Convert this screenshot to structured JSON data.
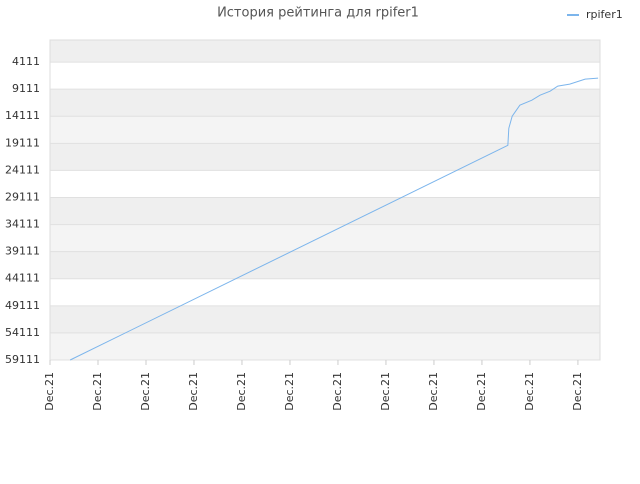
{
  "chart_data": {
    "type": "line",
    "title": "История рейтинга для rpifer1",
    "x": [
      0.42,
      9.54,
      9.56,
      9.63,
      9.79,
      10.04,
      10.21,
      10.42,
      10.58,
      10.83,
      11.15,
      11.42
    ],
    "series": [
      {
        "name": "rpifer1",
        "color": "#7cb5ec",
        "values": [
          59111,
          19481,
          16333,
          14111,
          12074,
          11148,
          10222,
          9481,
          8555,
          8185,
          7259,
          7074
        ]
      }
    ],
    "xlim": [
      0,
      11.46
    ],
    "xticks": [
      {
        "value": 0,
        "label": "Dec.21"
      },
      {
        "value": 1,
        "label": "Dec.21"
      },
      {
        "value": 2,
        "label": "Dec.21"
      },
      {
        "value": 3,
        "label": "Dec.21"
      },
      {
        "value": 4,
        "label": "Dec.21"
      },
      {
        "value": 5,
        "label": "Dec.21"
      },
      {
        "value": 6,
        "label": "Dec.21"
      },
      {
        "value": 7,
        "label": "Dec.21"
      },
      {
        "value": 8,
        "label": "Dec.21"
      },
      {
        "value": 9,
        "label": "Dec.21"
      },
      {
        "value": 10,
        "label": "Dec.21"
      },
      {
        "value": 11,
        "label": "Dec.21"
      }
    ],
    "ylim": [
      59111,
      37
    ],
    "yticks": [
      4111,
      9111,
      14111,
      19111,
      24111,
      29111,
      34111,
      39111,
      44111,
      49111,
      54111,
      59111
    ],
    "grid": true,
    "legend": "top-right"
  }
}
